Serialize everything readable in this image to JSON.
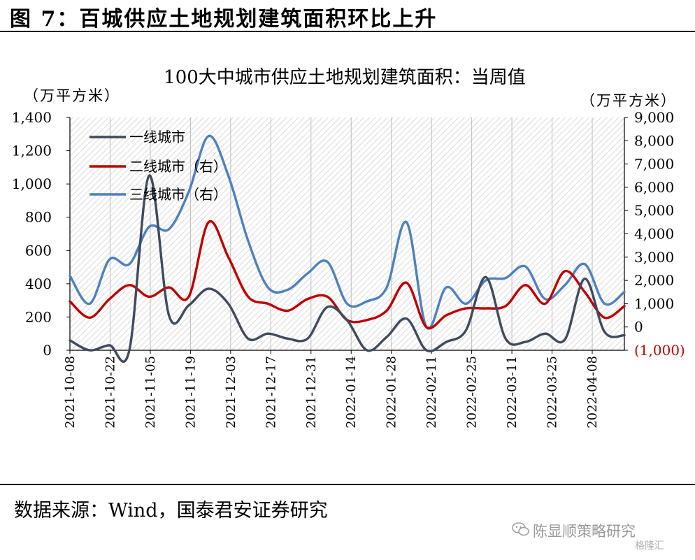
{
  "figure_title": "图 7：百城供应土地规划建筑面积环比上升",
  "source": "数据来源：Wind，国泰君安证券研究",
  "watermark": "陈显顺策略研究",
  "logo": "格隆汇",
  "colors": {
    "series1": "#3f4b5e",
    "series2": "#c00000",
    "series3": "#4e81bd",
    "right_negative_label": "#c00000"
  },
  "chart_data": {
    "type": "line",
    "title": "100大中城市供应土地规划建筑面积：当周值",
    "ylabel_left": "（万平方米）",
    "ylabel_right": "（万平方米）",
    "ylim_left": [
      0,
      1400
    ],
    "ylim_right": [
      -1000,
      9000
    ],
    "yticks_left": [
      "0",
      "200",
      "400",
      "600",
      "800",
      "1,000",
      "1,200",
      "1,400"
    ],
    "yticks_right": [
      "(1,000)",
      "0",
      "1,000",
      "2,000",
      "3,000",
      "4,000",
      "5,000",
      "6,000",
      "7,000",
      "8,000",
      "9,000"
    ],
    "xticks": [
      "2021-10-08",
      "2021-10-22",
      "2021-11-05",
      "2021-11-19",
      "2021-12-03",
      "2021-12-17",
      "2021-12-31",
      "2022-01-14",
      "2022-01-28",
      "2022-02-11",
      "2022-02-25",
      "2022-03-11",
      "2022-03-25",
      "2022-04-08"
    ],
    "legend_position": "top-left",
    "series": [
      {
        "name": "一线城市",
        "axis": "left",
        "values": [
          60,
          0,
          30,
          0,
          1050,
          210,
          270,
          370,
          280,
          70,
          100,
          70,
          70,
          260,
          180,
          0,
          80,
          190,
          0,
          50,
          120,
          440,
          70,
          50,
          100,
          65,
          430,
          110,
          90
        ]
      },
      {
        "name": "二线城市（右）",
        "axis": "right",
        "values": [
          1100,
          400,
          1200,
          1800,
          1300,
          1700,
          1300,
          4500,
          3000,
          1300,
          1000,
          700,
          1200,
          1300,
          300,
          300,
          700,
          1900,
          0,
          500,
          800,
          800,
          900,
          1800,
          1000,
          2400,
          1500,
          400,
          900
        ]
      },
      {
        "name": "三线城市（右）",
        "axis": "right",
        "values": [
          2200,
          1000,
          2900,
          2700,
          4300,
          4200,
          5800,
          8200,
          6500,
          3700,
          1700,
          1600,
          2300,
          2800,
          1000,
          1100,
          1700,
          4500,
          0,
          1700,
          1000,
          2000,
          2100,
          2600,
          1200,
          1800,
          2700,
          1000,
          1500
        ]
      }
    ]
  }
}
